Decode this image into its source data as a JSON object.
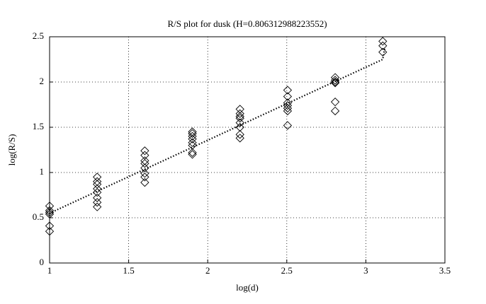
{
  "chart_data": {
    "type": "scatter",
    "title": "R/S plot for dusk (H=0.806312988223552)",
    "xlabel": "log(d)",
    "ylabel": "log(R/S)",
    "xlim": [
      1,
      3.5
    ],
    "ylim": [
      0,
      2.5
    ],
    "xticks": [
      1,
      1.5,
      2,
      2.5,
      3,
      3.5
    ],
    "yticks": [
      0,
      0.5,
      1,
      1.5,
      2,
      2.5
    ],
    "grid": true,
    "series": [
      {
        "type": "scatter",
        "color": "#000000",
        "x": [
          1,
          1,
          1,
          1,
          1,
          1,
          1.301,
          1.301,
          1.301,
          1.301,
          1.301,
          1.301,
          1.301,
          1.301,
          1.602,
          1.602,
          1.602,
          1.602,
          1.602,
          1.602,
          1.602,
          1.602,
          1.903,
          1.903,
          1.903,
          1.903,
          1.903,
          1.903,
          1.903,
          1.903,
          2.204,
          2.204,
          2.204,
          2.204,
          2.204,
          2.204,
          2.204,
          2.204,
          2.505,
          2.505,
          2.505,
          2.505,
          2.505,
          2.505,
          2.505,
          2.806,
          2.806,
          2.806,
          2.806,
          2.806,
          2.806,
          3.107,
          3.107,
          3.107
        ],
        "values": [
          0.63,
          0.58,
          0.56,
          0.54,
          0.41,
          0.35,
          0.95,
          0.9,
          0.87,
          0.82,
          0.78,
          0.72,
          0.67,
          0.62,
          1.24,
          1.19,
          1.13,
          1.1,
          1.05,
          0.99,
          0.95,
          0.89,
          1.45,
          1.43,
          1.4,
          1.37,
          1.33,
          1.3,
          1.22,
          1.2,
          1.7,
          1.65,
          1.62,
          1.6,
          1.55,
          1.5,
          1.42,
          1.38,
          1.91,
          1.84,
          1.77,
          1.74,
          1.71,
          1.68,
          1.52,
          2.05,
          2.02,
          2,
          1.99,
          1.78,
          1.68,
          2.45,
          2.4,
          2.33
        ]
      },
      {
        "type": "line",
        "color": "#000000",
        "x": [
          1,
          3.107,
          3.12
        ],
        "values": [
          0.55,
          2.25,
          2.38
        ]
      }
    ]
  }
}
